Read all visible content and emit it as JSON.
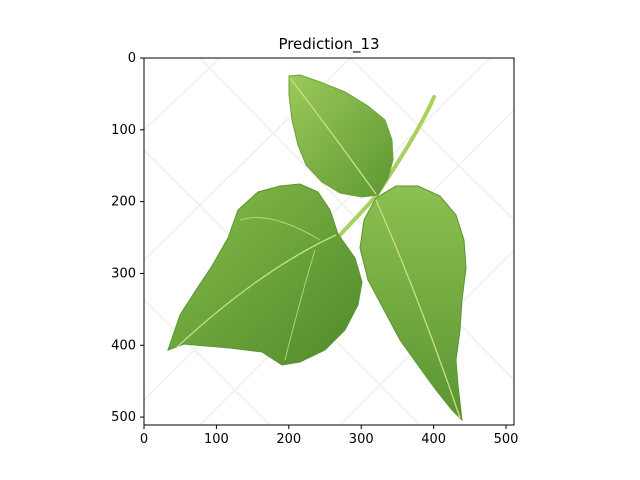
{
  "chart_data": {
    "type": "image",
    "title": "Prediction_13",
    "xlabel": "",
    "ylabel": "",
    "xlim": [
      0,
      511
    ],
    "ylim": [
      511,
      0
    ],
    "x_ticks": [
      0,
      100,
      200,
      300,
      400,
      500
    ],
    "y_ticks": [
      0,
      100,
      200,
      300,
      400,
      500
    ],
    "grid": false
  },
  "colors": {
    "leaf_light": "#9cc95a",
    "leaf_mid": "#6fa93a",
    "leaf_dark": "#4f8a2a",
    "vein": "#c8e08a",
    "stem": "#a9d15f"
  }
}
